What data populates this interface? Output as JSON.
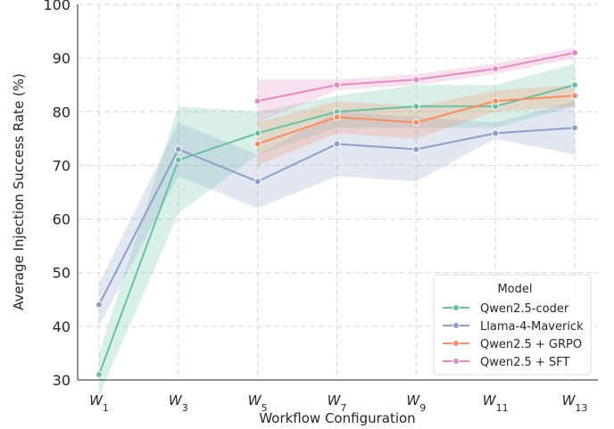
{
  "chart_data": {
    "type": "line",
    "xlabel": "Workflow Configuration",
    "ylabel": "Average Injection Success Rate (%)",
    "ylim": [
      30,
      100
    ],
    "yticks": [
      30,
      40,
      50,
      60,
      70,
      80,
      90,
      100
    ],
    "categories": [
      {
        "base": "W",
        "sub": "1"
      },
      {
        "base": "W",
        "sub": "3"
      },
      {
        "base": "W",
        "sub": "5"
      },
      {
        "base": "W",
        "sub": "7"
      },
      {
        "base": "W",
        "sub": "9"
      },
      {
        "base": "W",
        "sub": "11"
      },
      {
        "base": "W",
        "sub": "13"
      }
    ],
    "grid": true,
    "legend": {
      "title": "Model",
      "placement": "lower-right"
    },
    "series": [
      {
        "name": "Qwen2.5-coder",
        "color": "#66c2a5",
        "values": [
          31,
          71,
          76,
          80,
          81,
          81,
          85
        ],
        "lower": [
          27,
          61,
          72,
          77,
          77,
          77,
          81
        ],
        "upper": [
          35,
          81,
          80,
          83,
          85,
          85,
          89
        ]
      },
      {
        "name": "Llama-4-Maverick",
        "color": "#8da0cb",
        "values": [
          44,
          73,
          67,
          74,
          73,
          76,
          77
        ],
        "lower": [
          40,
          68,
          62,
          68,
          67,
          75,
          72
        ],
        "upper": [
          48,
          78,
          72,
          80,
          79,
          78,
          82
        ]
      },
      {
        "name": "Qwen2.5 + GRPO",
        "color": "#fc8d62",
        "values": [
          null,
          null,
          74,
          79,
          78,
          82,
          83
        ],
        "lower": [
          null,
          null,
          70,
          76,
          75,
          80,
          81
        ],
        "upper": [
          null,
          null,
          78,
          82,
          81,
          84,
          85
        ]
      },
      {
        "name": "Qwen2.5 + SFT",
        "color": "#e78ac3",
        "values": [
          null,
          null,
          82,
          85,
          86,
          88,
          91
        ],
        "lower": [
          null,
          null,
          78,
          84,
          85,
          87,
          90
        ],
        "upper": [
          null,
          null,
          86,
          86,
          87,
          89,
          92
        ]
      }
    ]
  }
}
